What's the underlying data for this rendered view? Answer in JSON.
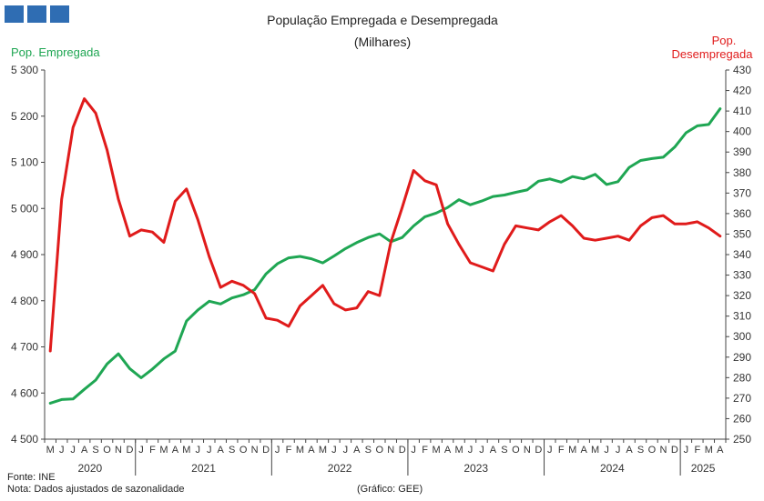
{
  "colors": {
    "employed": "#1fa653",
    "unemployed": "#e01b1b",
    "axis": "#444444",
    "logo": "#2f6db3"
  },
  "chart_data": {
    "type": "line",
    "title": "População  Empregada  e Desempregada",
    "subtitle": "(Milhares)",
    "ylabel_left": "Pop. Empregada",
    "ylabel_right_line1": "Pop.",
    "ylabel_right_line2": "Desempregada",
    "ylim_left": [
      4500,
      5300
    ],
    "ylim_right": [
      250,
      430
    ],
    "y_left_ticks": [
      4500,
      4600,
      4700,
      4800,
      4900,
      5000,
      5100,
      5200,
      5300
    ],
    "y_left_tick_labels": [
      "4 500",
      "4 600",
      "4 700",
      "4 800",
      "4 900",
      "5 000",
      "5 100",
      "5 200",
      "5 300"
    ],
    "y_right_ticks": [
      250,
      260,
      270,
      280,
      290,
      300,
      310,
      320,
      330,
      340,
      350,
      360,
      370,
      380,
      390,
      400,
      410,
      420,
      430
    ],
    "month_labels": [
      "M",
      "J",
      "J",
      "A",
      "S",
      "O",
      "N",
      "D",
      "J",
      "F",
      "M",
      "A",
      "M",
      "J",
      "J",
      "A",
      "S",
      "O",
      "N",
      "D",
      "J",
      "F",
      "M",
      "A",
      "M",
      "J",
      "J",
      "A",
      "S",
      "O",
      "N",
      "D",
      "J",
      "F",
      "M",
      "A",
      "M",
      "J",
      "J",
      "A",
      "S",
      "O",
      "N",
      "D",
      "J",
      "F",
      "M",
      "A",
      "M",
      "J",
      "J",
      "A",
      "S",
      "O",
      "N",
      "D",
      "J",
      "F",
      "M",
      "A"
    ],
    "year_labels": [
      {
        "label": "2020",
        "start": 0,
        "end": 7
      },
      {
        "label": "2021",
        "start": 8,
        "end": 19
      },
      {
        "label": "2022",
        "start": 20,
        "end": 31
      },
      {
        "label": "2023",
        "start": 32,
        "end": 43
      },
      {
        "label": "2024",
        "start": 44,
        "end": 55
      },
      {
        "label": "2025",
        "start": 56,
        "end": 59
      }
    ],
    "series": [
      {
        "name": "Pop. Empregada",
        "axis": "left",
        "values": [
          4578,
          4586,
          4587,
          4608,
          4628,
          4663,
          4685,
          4653,
          4633,
          4652,
          4674,
          4691,
          4756,
          4780,
          4799,
          4793,
          4806,
          4813,
          4824,
          4858,
          4880,
          4893,
          4896,
          4891,
          4882,
          4897,
          4913,
          4926,
          4937,
          4945,
          4928,
          4937,
          4962,
          4982,
          4990,
          5002,
          5019,
          5008,
          5016,
          5026,
          5029,
          5035,
          5040,
          5059,
          5064,
          5057,
          5069,
          5064,
          5074,
          5052,
          5058,
          5089,
          5104,
          5108,
          5111,
          5133,
          5164,
          5179,
          5182,
          5216
        ]
      },
      {
        "name": "Pop. Desempregada",
        "axis": "right",
        "values": [
          293,
          367,
          402,
          416,
          409,
          391,
          367,
          349,
          352,
          351,
          346,
          366,
          372,
          357,
          339,
          324,
          327,
          325,
          321,
          309,
          308,
          305,
          315,
          320,
          325,
          316,
          313,
          314,
          322,
          320,
          346,
          363,
          381,
          376,
          374,
          355,
          345,
          336,
          334,
          332,
          345,
          354,
          353,
          352,
          356,
          359,
          354,
          348,
          347,
          348,
          349,
          347,
          354,
          358,
          359,
          355,
          355,
          356,
          353,
          349
        ]
      }
    ]
  },
  "footer": {
    "source": "Fonte: INE",
    "note": "Nota: Dados ajustados de sazonalidade",
    "credit": "(Gráfico: GEE)"
  }
}
